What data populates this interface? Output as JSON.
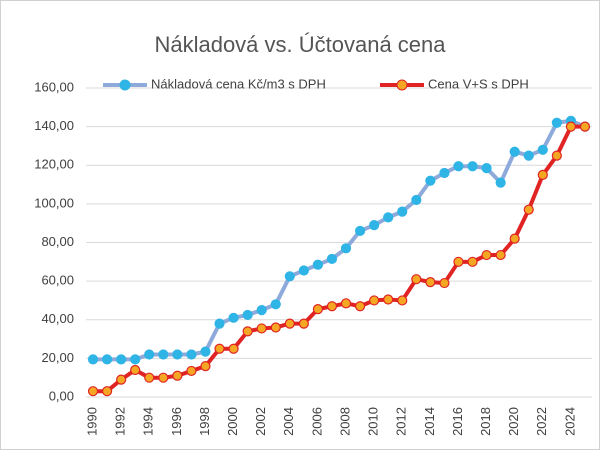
{
  "chart_data": {
    "type": "line",
    "title": "Nákladová vs. Účtovaná cena",
    "categories": [
      "1990",
      null,
      "1992",
      null,
      "1994",
      null,
      "1996",
      null,
      "1998",
      null,
      "2000",
      null,
      "2002",
      null,
      "2004",
      null,
      "2006",
      null,
      "2008",
      null,
      "2010",
      null,
      "2012",
      null,
      "2014",
      null,
      "2016",
      null,
      "2018",
      null,
      "2020",
      null,
      "2022",
      null,
      "2024",
      null
    ],
    "series": [
      {
        "name": "Nákladová cena Kč/m3 s DPH",
        "color": "#8eaadb",
        "marker_color": "#2fb4e6",
        "values": [
          19.5,
          19.5,
          19.5,
          19.5,
          22,
          22,
          22,
          22,
          23.5,
          38,
          41,
          42.5,
          45,
          48,
          62.5,
          65.5,
          68.5,
          71.5,
          77,
          86,
          89,
          93,
          96,
          102,
          112,
          116,
          119.5,
          119.5,
          118.5,
          111,
          127,
          125,
          128,
          142,
          143,
          140
        ]
      },
      {
        "name": "Cena V+S s DPH",
        "color": "#e02424",
        "marker_color": "#f5a623",
        "values": [
          3,
          3,
          9,
          14,
          10,
          10,
          11,
          13.5,
          16,
          25,
          25,
          34,
          35.5,
          36,
          38,
          38,
          45.5,
          47,
          48.5,
          47,
          50,
          50.5,
          50,
          61,
          59.5,
          59,
          70,
          70,
          73.5,
          73.5,
          82,
          97,
          115,
          125,
          140,
          140
        ]
      }
    ],
    "ylim": [
      0,
      160
    ],
    "yticks": [
      {
        "value": 0,
        "label": "0,00"
      },
      {
        "value": 20,
        "label": "20,00"
      },
      {
        "value": 40,
        "label": "40,00"
      },
      {
        "value": 60,
        "label": "60,00"
      },
      {
        "value": 80,
        "label": "80,00"
      },
      {
        "value": 100,
        "label": "100,00"
      },
      {
        "value": 120,
        "label": "120,00"
      },
      {
        "value": 140,
        "label": "140,00"
      },
      {
        "value": 160,
        "label": "160,00"
      }
    ],
    "grid": true
  }
}
